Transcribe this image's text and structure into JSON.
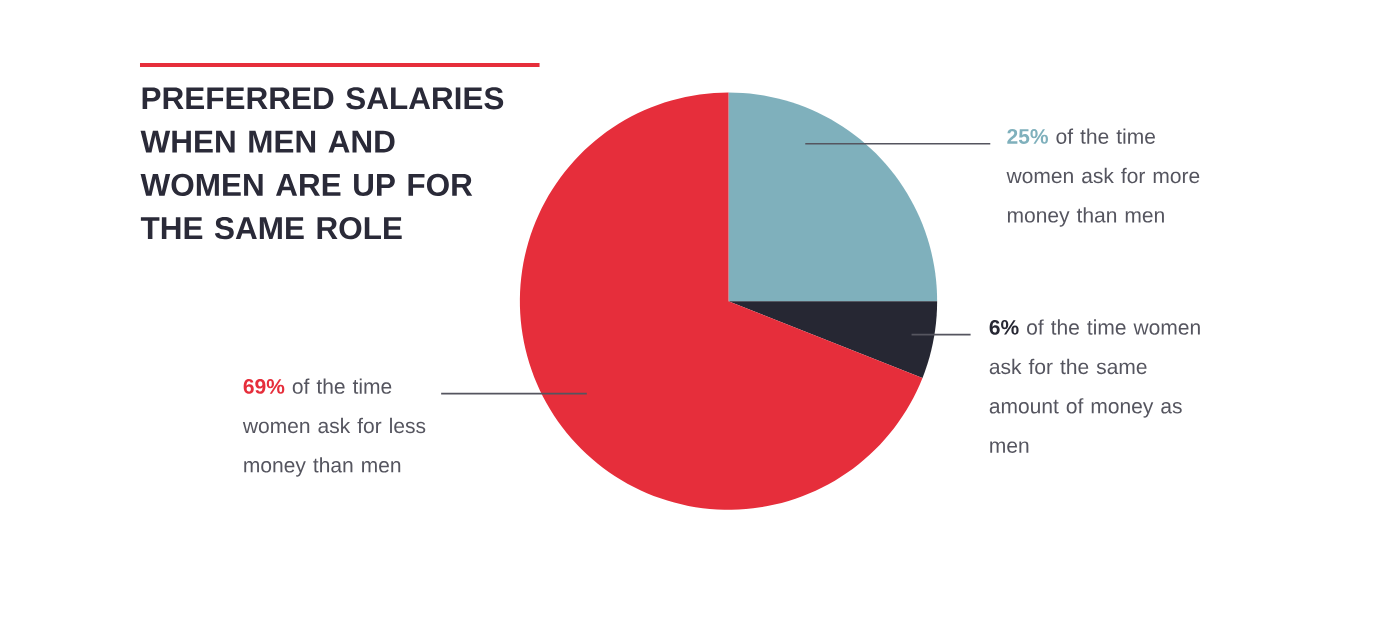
{
  "chart_data": {
    "type": "pie",
    "title": "PREFERRED SALARIES WHEN MEN AND WOMEN ARE UP FOR THE SAME ROLE",
    "categories": [
      "of the time women ask for more money than men",
      "of the time women ask for the same amount of money as men",
      "of the time women ask for less money than men"
    ],
    "values": [
      25,
      6,
      69
    ],
    "value_labels": [
      "25%",
      "6%",
      "69%"
    ],
    "colors": [
      "#7fb0bc",
      "#262733",
      "#e62e3b"
    ]
  }
}
